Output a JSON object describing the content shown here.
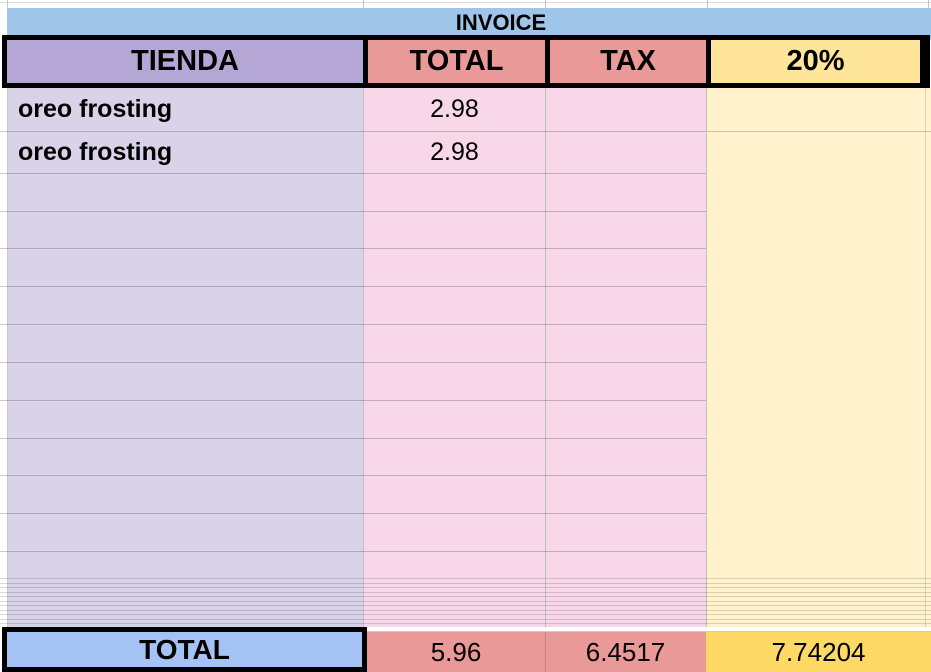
{
  "sheet_title": "INVOICE",
  "columns": [
    {
      "id": "tienda",
      "label": "TIENDA"
    },
    {
      "id": "total",
      "label": "TOTAL"
    },
    {
      "id": "tax",
      "label": "TAX"
    },
    {
      "id": "pct",
      "label": "20%"
    }
  ],
  "rows": [
    {
      "tienda": "oreo frosting",
      "total": "2.98",
      "tax": "",
      "pct": ""
    },
    {
      "tienda": "oreo frosting",
      "total": "2.98",
      "tax": "",
      "pct": ""
    }
  ],
  "footer": {
    "label": "TOTAL",
    "total": "5.96",
    "tax": "6.4517",
    "pct": "7.74204"
  },
  "colors": {
    "banner_blue": "#9fc5e8",
    "header_purple": "#b4a7d6",
    "header_salmon": "#ea9999",
    "header_yellow": "#ffe599",
    "body_lavender": "#d9d2e9",
    "body_pink": "#f8d8e8",
    "body_cream": "#fff2cc",
    "footer_blue": "#a4c2f4",
    "footer_salmon": "#ea9999",
    "footer_gold": "#ffd966",
    "border_black": "#000000"
  }
}
